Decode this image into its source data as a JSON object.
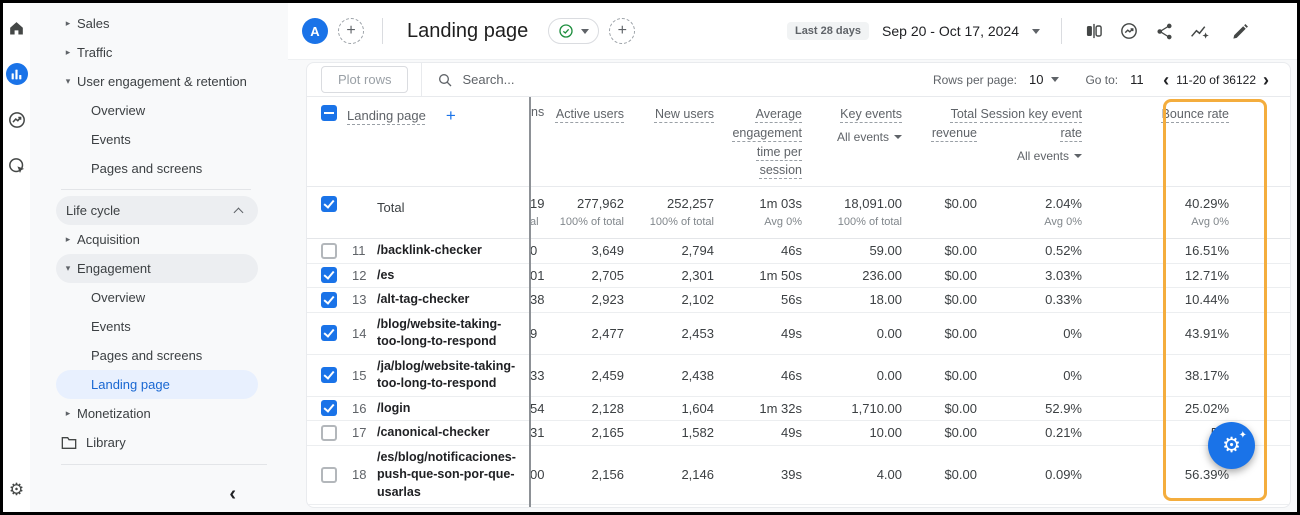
{
  "colors": {
    "accent": "#1a73e8",
    "selected_text": "#1967d2",
    "highlight_border": "#f4ad3d",
    "status_green": "#1e8e3e"
  },
  "nav_rail": {
    "items": [
      {
        "icon": "home-icon"
      },
      {
        "icon": "reports-icon",
        "active": true
      },
      {
        "icon": "explore-icon"
      },
      {
        "icon": "advertising-icon"
      }
    ],
    "bottom_icon": "gear-icon"
  },
  "sidebar": {
    "items": [
      {
        "type": "expand",
        "state": "collapsed",
        "label": "Sales"
      },
      {
        "type": "expand",
        "state": "collapsed",
        "label": "Traffic"
      },
      {
        "type": "expand",
        "state": "expanded",
        "label": "User engagement & retention"
      },
      {
        "type": "sub",
        "label": "Overview"
      },
      {
        "type": "sub",
        "label": "Events"
      },
      {
        "type": "sub",
        "label": "Pages and screens"
      },
      {
        "type": "divider"
      },
      {
        "type": "group",
        "label": "Life cycle",
        "chevron": "up"
      },
      {
        "type": "expand",
        "state": "collapsed",
        "label": "Acquisition"
      },
      {
        "type": "expand",
        "state": "expanded",
        "label": "Engagement",
        "highlighted": true
      },
      {
        "type": "sub",
        "label": "Overview"
      },
      {
        "type": "sub",
        "label": "Events"
      },
      {
        "type": "sub",
        "label": "Pages and screens"
      },
      {
        "type": "sub",
        "label": "Landing page",
        "selected": true
      },
      {
        "type": "expand",
        "state": "collapsed",
        "label": "Monetization"
      },
      {
        "type": "folder",
        "label": "Library"
      }
    ],
    "collapse_icon": "‹"
  },
  "topbar": {
    "avatar": "A",
    "plus": "+",
    "title": "Landing page",
    "status_icon": "check-circle-icon",
    "date_chip": "Last 28 days",
    "date_range": "Sep 20 - Oct 17, 2024",
    "icons": [
      "compare-icon",
      "trend-circle-icon",
      "share-icon",
      "insights-sparkle-icon",
      "edit-pencil-icon"
    ]
  },
  "toolbar": {
    "plot_rows_label": "Plot rows",
    "search_placeholder": "Search...",
    "rows_per_page_label": "Rows per page:",
    "rows_per_page_value": "10",
    "goto_label": "Go to:",
    "goto_value": "11",
    "range": "11-20 of 36122",
    "prev": "‹",
    "next": "›"
  },
  "table": {
    "dimension_header": "Landing page",
    "add_column": "+",
    "clipped_header": "ns",
    "headers": [
      {
        "label": "Active users"
      },
      {
        "label": "New users"
      },
      {
        "label": "Average engagement time per session"
      },
      {
        "label": "Key events",
        "sub": "All events"
      },
      {
        "label": "Total revenue"
      },
      {
        "label": "Session key event rate",
        "sub": "All events"
      },
      {
        "label": "Bounce rate"
      }
    ],
    "total": {
      "label": "Total",
      "clip": "19",
      "clip_sub": "al",
      "cells": [
        {
          "v": "277,962",
          "s": "100% of total"
        },
        {
          "v": "252,257",
          "s": "100% of total"
        },
        {
          "v": "1m 03s",
          "s": "Avg 0%"
        },
        {
          "v": "18,091.00",
          "s": "100% of total"
        },
        {
          "v": "$0.00",
          "s": ""
        },
        {
          "v": "2.04%",
          "s": "Avg 0%"
        },
        {
          "v": "40.29%",
          "s": "Avg 0%"
        }
      ]
    },
    "rows": [
      {
        "num": "11",
        "path": "/backlink-checker",
        "checked": false,
        "clip": "0",
        "cells": [
          "3,649",
          "2,794",
          "46s",
          "59.00",
          "$0.00",
          "0.52%",
          "16.51%"
        ]
      },
      {
        "num": "12",
        "path": "/es",
        "checked": true,
        "clip": "01",
        "cells": [
          "2,705",
          "2,301",
          "1m 50s",
          "236.00",
          "$0.00",
          "3.03%",
          "12.71%"
        ]
      },
      {
        "num": "13",
        "path": "/alt-tag-checker",
        "checked": true,
        "clip": "38",
        "cells": [
          "2,923",
          "2,102",
          "56s",
          "18.00",
          "$0.00",
          "0.33%",
          "10.44%"
        ]
      },
      {
        "num": "14",
        "path": "/blog/website-taking-too-long-to-respond",
        "checked": true,
        "clip": "9",
        "cells": [
          "2,477",
          "2,453",
          "49s",
          "0.00",
          "$0.00",
          "0%",
          "43.91%"
        ]
      },
      {
        "num": "15",
        "path": "/ja/blog/website-taking-too-long-to-respond",
        "checked": true,
        "clip": "33",
        "cells": [
          "2,459",
          "2,438",
          "46s",
          "0.00",
          "$0.00",
          "0%",
          "38.17%"
        ]
      },
      {
        "num": "16",
        "path": "/login",
        "checked": true,
        "clip": "54",
        "cells": [
          "2,128",
          "1,604",
          "1m 32s",
          "1,710.00",
          "$0.00",
          "52.9%",
          "25.02%"
        ]
      },
      {
        "num": "17",
        "path": "/canonical-checker",
        "checked": false,
        "clip": "31",
        "cells": [
          "2,165",
          "1,582",
          "49s",
          "10.00",
          "$0.00",
          "0.21%",
          "5.8"
        ]
      },
      {
        "num": "18",
        "path": "/es/blog/notificaciones-push-que-son-por-que-usarlas",
        "checked": false,
        "clip": "00",
        "cells": [
          "2,156",
          "2,146",
          "39s",
          "4.00",
          "$0.00",
          "0.09%",
          "56.39%"
        ]
      }
    ]
  },
  "fab": {
    "icon": "gear-sparkle-icon"
  }
}
